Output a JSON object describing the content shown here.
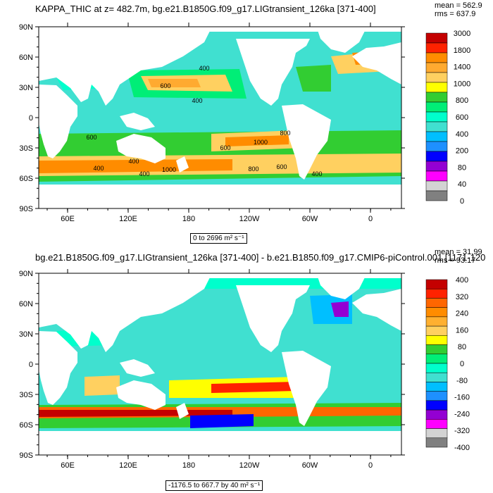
{
  "chart_data": [
    {
      "type": "heatmap",
      "title": "KAPPA_THIC at z= 482.7m, bg.e21.B1850G.f09_g17.LIGtransient_126ka [371-400]",
      "stats": {
        "mean": "mean = 562.9",
        "rms": "rms = 637.9"
      },
      "range_label": "0 to 2696 m² s⁻¹",
      "xlabels": [
        "60E",
        "120E",
        "180",
        "120W",
        "60W",
        "0"
      ],
      "ylabels": [
        "90N",
        "60N",
        "30N",
        "0",
        "30S",
        "60S",
        "90S"
      ],
      "colorbar": {
        "levels": [
          "3000",
          "1800",
          "1400",
          "1000",
          "800",
          "600",
          "400",
          "200",
          "80",
          "40",
          "0"
        ],
        "colors": [
          "#c40000",
          "#ff2200",
          "#ff8c00",
          "#ffaa30",
          "#ffd060",
          "#ffff00",
          "#32cd32",
          "#00ee77",
          "#00ffcc",
          "#40e0d0",
          "#00bfff",
          "#1e90ff",
          "#0000ff",
          "#9400d3",
          "#ff00ff",
          "#d3d3d3",
          "#808080"
        ]
      },
      "contour_labels": [
        "400",
        "400",
        "600",
        "600",
        "1000",
        "600",
        "800",
        "400",
        "1000",
        "800",
        "600",
        "400",
        "400",
        "400"
      ],
      "base_color": "#40e0d0"
    },
    {
      "type": "heatmap",
      "title": "bg.e21.B1850G.f09_g17.LIGtransient_126ka [371-400] - b.e21.B1850.f09_g17.CMIP6-piControl.001 [1171-120",
      "stats": {
        "mean": "mean = 31.99",
        "rms": "rms = 93.17"
      },
      "range_label": "-1176.5 to 667.7 by 40 m² s⁻¹",
      "xlabels": [
        "60E",
        "120E",
        "180",
        "120W",
        "60W",
        "0"
      ],
      "ylabels": [
        "90N",
        "60N",
        "30N",
        "0",
        "30S",
        "60S",
        "90S"
      ],
      "colorbar": {
        "levels": [
          "400",
          "320",
          "240",
          "160",
          "80",
          "0",
          "-80",
          "-160",
          "-240",
          "-320",
          "-400"
        ],
        "colors": [
          "#c40000",
          "#ff2200",
          "#ff6600",
          "#ff8c00",
          "#ffb030",
          "#ffd060",
          "#ffff00",
          "#32cd32",
          "#00ee77",
          "#00ffcc",
          "#40e0d0",
          "#00bfff",
          "#1e90ff",
          "#0000ff",
          "#9400d3",
          "#ff00ff",
          "#d3d3d3",
          "#808080"
        ]
      },
      "base_color": "#40e0d0"
    }
  ]
}
